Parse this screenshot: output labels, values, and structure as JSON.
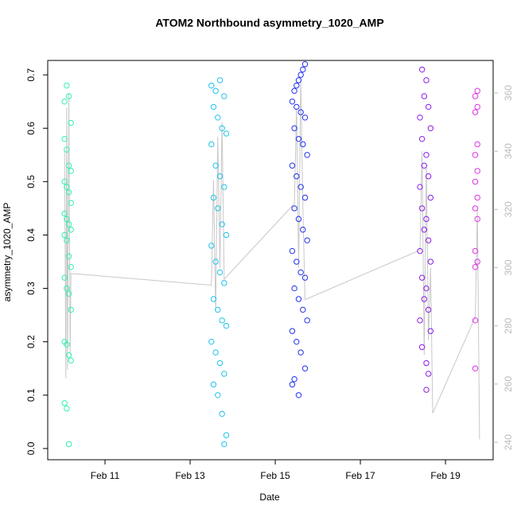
{
  "chart_data": {
    "type": "scatter",
    "title": "ATOM2 Northbound asymmetry_1020_AMP",
    "x_label": "Date",
    "y_label": "asymmetry_1020_AMP",
    "xlim": [
      9.654,
      20.12
    ],
    "ylim": [
      -0.021,
      0.727
    ],
    "y2lim": [
      234,
      371.2
    ],
    "xticks": [
      {
        "value": 11,
        "label": "Feb 11"
      },
      {
        "value": 13,
        "label": "Feb 13"
      },
      {
        "value": 15,
        "label": "Feb 15"
      },
      {
        "value": 17,
        "label": "Feb 17"
      },
      {
        "value": 19,
        "label": "Feb 19"
      }
    ],
    "yticks": [
      {
        "value": 0,
        "label": "0.0"
      },
      0.1,
      0.2,
      0.3,
      0.4,
      0.5,
      0.6,
      0.7
    ],
    "y2ticks": [
      240,
      260,
      280,
      300,
      320,
      340,
      360
    ],
    "series": [
      {
        "color": "#2ef2b4",
        "x": [
          10.05,
          10.1,
          10.15,
          10.2,
          10.05,
          10.1,
          10.15,
          10.2,
          10.05,
          10.1,
          10.15,
          10.2,
          10.05,
          10.1,
          10.15,
          10.2,
          10.05,
          10.1,
          10.15,
          10.2,
          10.05,
          10.1,
          10.15,
          10.2,
          10.05,
          10.1,
          10.15,
          10.2,
          10.05,
          10.1,
          10.15
        ],
        "values": [
          0.65,
          0.68,
          0.66,
          0.61,
          0.58,
          0.56,
          0.53,
          0.52,
          0.5,
          0.49,
          0.48,
          0.46,
          0.44,
          0.43,
          0.42,
          0.41,
          0.4,
          0.39,
          0.36,
          0.34,
          0.32,
          0.3,
          0.29,
          0.26,
          0.2,
          0.195,
          0.175,
          0.165,
          0.085,
          0.075,
          0.008
        ]
      },
      {
        "color": "#1ec4ea",
        "x": [
          13.5,
          13.6,
          13.7,
          13.8,
          13.55,
          13.65,
          13.75,
          13.85,
          13.5,
          13.6,
          13.7,
          13.8,
          13.55,
          13.65,
          13.75,
          13.85,
          13.5,
          13.6,
          13.7,
          13.8,
          13.55,
          13.65,
          13.75,
          13.85,
          13.5,
          13.6,
          13.7,
          13.8,
          13.55,
          13.65,
          13.75,
          13.85,
          13.8
        ],
        "values": [
          0.68,
          0.67,
          0.69,
          0.66,
          0.64,
          0.62,
          0.6,
          0.59,
          0.57,
          0.53,
          0.51,
          0.49,
          0.47,
          0.45,
          0.42,
          0.4,
          0.38,
          0.35,
          0.33,
          0.31,
          0.28,
          0.26,
          0.24,
          0.23,
          0.2,
          0.18,
          0.16,
          0.14,
          0.12,
          0.1,
          0.065,
          0.025,
          0.008
        ]
      },
      {
        "color": "#2233ee",
        "x": [
          15.7,
          15.65,
          15.6,
          15.55,
          15.5,
          15.45,
          15.4,
          15.5,
          15.6,
          15.7,
          15.45,
          15.55,
          15.65,
          15.75,
          15.4,
          15.5,
          15.6,
          15.7,
          15.45,
          15.55,
          15.65,
          15.75,
          15.4,
          15.5,
          15.6,
          15.7,
          15.45,
          15.55,
          15.65,
          15.75,
          15.4,
          15.5,
          15.6,
          15.7,
          15.45,
          15.4,
          15.55
        ],
        "values": [
          0.72,
          0.71,
          0.7,
          0.69,
          0.68,
          0.67,
          0.65,
          0.64,
          0.63,
          0.62,
          0.6,
          0.58,
          0.57,
          0.55,
          0.53,
          0.51,
          0.49,
          0.47,
          0.45,
          0.43,
          0.41,
          0.39,
          0.37,
          0.35,
          0.33,
          0.32,
          0.3,
          0.28,
          0.26,
          0.24,
          0.22,
          0.2,
          0.18,
          0.15,
          0.13,
          0.12,
          0.1
        ]
      },
      {
        "color": "#8a1ee6",
        "x": [
          18.45,
          18.55,
          18.5,
          18.6,
          18.4,
          18.65,
          18.45,
          18.55,
          18.5,
          18.6,
          18.4,
          18.65,
          18.45,
          18.55,
          18.5,
          18.6,
          18.4,
          18.65,
          18.45,
          18.55,
          18.5,
          18.6,
          18.4,
          18.65,
          18.45,
          18.55,
          18.6,
          18.55
        ],
        "values": [
          0.71,
          0.69,
          0.66,
          0.64,
          0.62,
          0.6,
          0.58,
          0.55,
          0.53,
          0.51,
          0.49,
          0.47,
          0.45,
          0.43,
          0.41,
          0.39,
          0.37,
          0.35,
          0.32,
          0.3,
          0.28,
          0.26,
          0.24,
          0.22,
          0.19,
          0.16,
          0.14,
          0.11
        ]
      },
      {
        "color": "#e033e6",
        "x": [
          19.75,
          19.7,
          19.75,
          19.7,
          19.75,
          19.7,
          19.75,
          19.7,
          19.75,
          19.7,
          19.75,
          19.7,
          19.75,
          19.7,
          19.7,
          19.7
        ],
        "values": [
          0.67,
          0.66,
          0.64,
          0.63,
          0.57,
          0.55,
          0.52,
          0.5,
          0.47,
          0.45,
          0.43,
          0.37,
          0.35,
          0.34,
          0.24,
          0.15
        ]
      },
      {
        "color": "#c8c8c8",
        "axis": "y2",
        "x": [
          10.05,
          10.08,
          10.1,
          10.12,
          10.15,
          10.18,
          10.2,
          13.5,
          13.55,
          13.6,
          13.65,
          13.7,
          13.75,
          13.8,
          15.45,
          15.5,
          15.55,
          15.6,
          15.65,
          15.7,
          18.4,
          18.45,
          18.5,
          18.55,
          18.6,
          18.65,
          18.7,
          19.7,
          19.75,
          19.8
        ],
        "values": [
          340,
          262,
          355,
          265,
          360,
          270,
          298,
          294,
          330,
          285,
          345,
          300,
          350,
          296,
          322,
          355,
          300,
          365,
          320,
          289,
          306,
          340,
          270,
          335,
          275,
          300,
          250,
          283,
          320,
          241
        ]
      }
    ]
  }
}
